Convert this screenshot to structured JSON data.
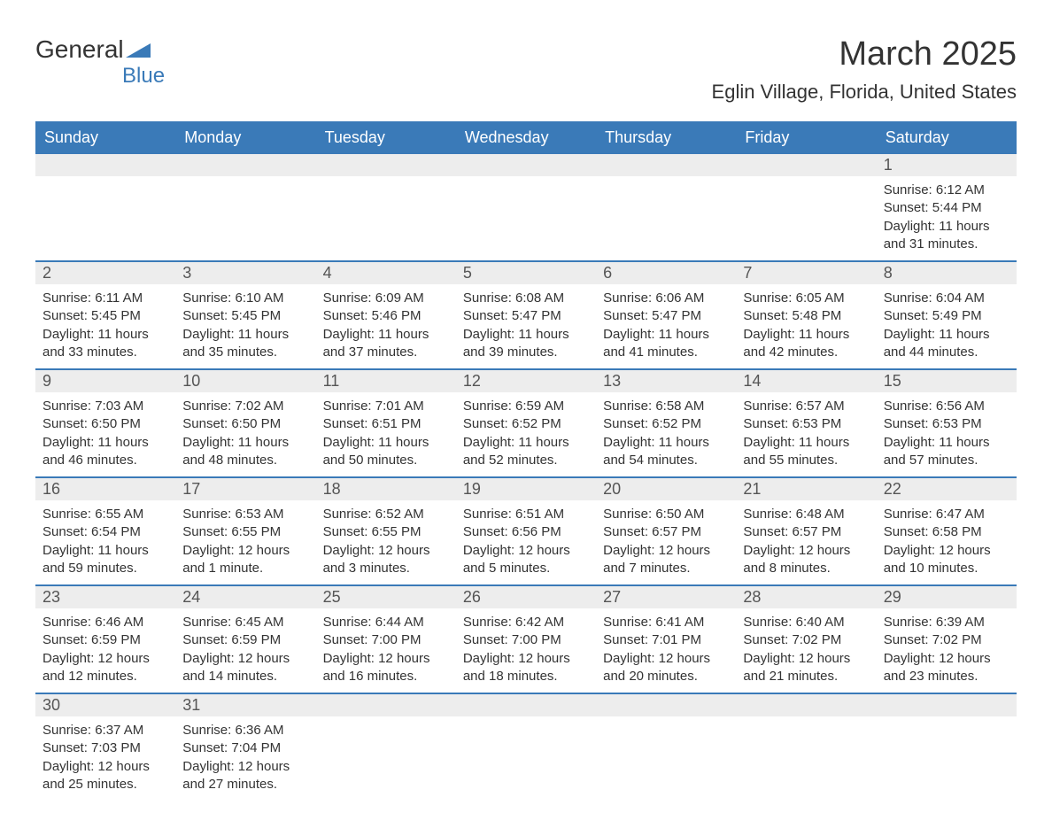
{
  "logo": {
    "text1": "General",
    "text2": "Blue",
    "triangle_color": "#3a7ab8"
  },
  "header": {
    "month_title": "March 2025",
    "location": "Eglin Village, Florida, United States"
  },
  "colors": {
    "header_bg": "#3a7ab8",
    "header_text": "#ffffff",
    "daynum_bg": "#ededed",
    "text": "#333333",
    "border": "#3a7ab8"
  },
  "day_names": [
    "Sunday",
    "Monday",
    "Tuesday",
    "Wednesday",
    "Thursday",
    "Friday",
    "Saturday"
  ],
  "weeks": [
    [
      null,
      null,
      null,
      null,
      null,
      null,
      {
        "n": "1",
        "sunrise": "6:12 AM",
        "sunset": "5:44 PM",
        "daylight": "11 hours and 31 minutes."
      }
    ],
    [
      {
        "n": "2",
        "sunrise": "6:11 AM",
        "sunset": "5:45 PM",
        "daylight": "11 hours and 33 minutes."
      },
      {
        "n": "3",
        "sunrise": "6:10 AM",
        "sunset": "5:45 PM",
        "daylight": "11 hours and 35 minutes."
      },
      {
        "n": "4",
        "sunrise": "6:09 AM",
        "sunset": "5:46 PM",
        "daylight": "11 hours and 37 minutes."
      },
      {
        "n": "5",
        "sunrise": "6:08 AM",
        "sunset": "5:47 PM",
        "daylight": "11 hours and 39 minutes."
      },
      {
        "n": "6",
        "sunrise": "6:06 AM",
        "sunset": "5:47 PM",
        "daylight": "11 hours and 41 minutes."
      },
      {
        "n": "7",
        "sunrise": "6:05 AM",
        "sunset": "5:48 PM",
        "daylight": "11 hours and 42 minutes."
      },
      {
        "n": "8",
        "sunrise": "6:04 AM",
        "sunset": "5:49 PM",
        "daylight": "11 hours and 44 minutes."
      }
    ],
    [
      {
        "n": "9",
        "sunrise": "7:03 AM",
        "sunset": "6:50 PM",
        "daylight": "11 hours and 46 minutes."
      },
      {
        "n": "10",
        "sunrise": "7:02 AM",
        "sunset": "6:50 PM",
        "daylight": "11 hours and 48 minutes."
      },
      {
        "n": "11",
        "sunrise": "7:01 AM",
        "sunset": "6:51 PM",
        "daylight": "11 hours and 50 minutes."
      },
      {
        "n": "12",
        "sunrise": "6:59 AM",
        "sunset": "6:52 PM",
        "daylight": "11 hours and 52 minutes."
      },
      {
        "n": "13",
        "sunrise": "6:58 AM",
        "sunset": "6:52 PM",
        "daylight": "11 hours and 54 minutes."
      },
      {
        "n": "14",
        "sunrise": "6:57 AM",
        "sunset": "6:53 PM",
        "daylight": "11 hours and 55 minutes."
      },
      {
        "n": "15",
        "sunrise": "6:56 AM",
        "sunset": "6:53 PM",
        "daylight": "11 hours and 57 minutes."
      }
    ],
    [
      {
        "n": "16",
        "sunrise": "6:55 AM",
        "sunset": "6:54 PM",
        "daylight": "11 hours and 59 minutes."
      },
      {
        "n": "17",
        "sunrise": "6:53 AM",
        "sunset": "6:55 PM",
        "daylight": "12 hours and 1 minute."
      },
      {
        "n": "18",
        "sunrise": "6:52 AM",
        "sunset": "6:55 PM",
        "daylight": "12 hours and 3 minutes."
      },
      {
        "n": "19",
        "sunrise": "6:51 AM",
        "sunset": "6:56 PM",
        "daylight": "12 hours and 5 minutes."
      },
      {
        "n": "20",
        "sunrise": "6:50 AM",
        "sunset": "6:57 PM",
        "daylight": "12 hours and 7 minutes."
      },
      {
        "n": "21",
        "sunrise": "6:48 AM",
        "sunset": "6:57 PM",
        "daylight": "12 hours and 8 minutes."
      },
      {
        "n": "22",
        "sunrise": "6:47 AM",
        "sunset": "6:58 PM",
        "daylight": "12 hours and 10 minutes."
      }
    ],
    [
      {
        "n": "23",
        "sunrise": "6:46 AM",
        "sunset": "6:59 PM",
        "daylight": "12 hours and 12 minutes."
      },
      {
        "n": "24",
        "sunrise": "6:45 AM",
        "sunset": "6:59 PM",
        "daylight": "12 hours and 14 minutes."
      },
      {
        "n": "25",
        "sunrise": "6:44 AM",
        "sunset": "7:00 PM",
        "daylight": "12 hours and 16 minutes."
      },
      {
        "n": "26",
        "sunrise": "6:42 AM",
        "sunset": "7:00 PM",
        "daylight": "12 hours and 18 minutes."
      },
      {
        "n": "27",
        "sunrise": "6:41 AM",
        "sunset": "7:01 PM",
        "daylight": "12 hours and 20 minutes."
      },
      {
        "n": "28",
        "sunrise": "6:40 AM",
        "sunset": "7:02 PM",
        "daylight": "12 hours and 21 minutes."
      },
      {
        "n": "29",
        "sunrise": "6:39 AM",
        "sunset": "7:02 PM",
        "daylight": "12 hours and 23 minutes."
      }
    ],
    [
      {
        "n": "30",
        "sunrise": "6:37 AM",
        "sunset": "7:03 PM",
        "daylight": "12 hours and 25 minutes."
      },
      {
        "n": "31",
        "sunrise": "6:36 AM",
        "sunset": "7:04 PM",
        "daylight": "12 hours and 27 minutes."
      },
      null,
      null,
      null,
      null,
      null
    ]
  ],
  "labels": {
    "sunrise": "Sunrise:",
    "sunset": "Sunset:",
    "daylight": "Daylight:"
  }
}
